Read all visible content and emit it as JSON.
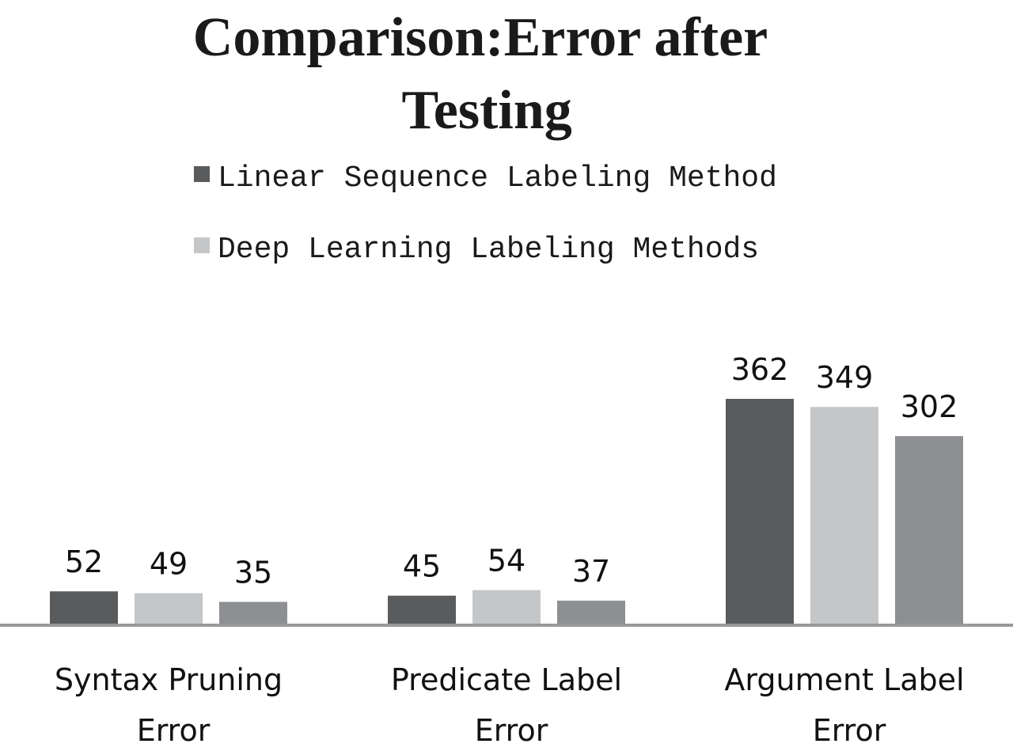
{
  "chart_data": {
    "type": "bar",
    "title": "Comparison:Error after Testing",
    "categories": [
      "Syntax Pruning Error",
      "Predicate Label Error",
      "Argument Label Error"
    ],
    "series": [
      {
        "name": "Linear Sequence Labeling Method",
        "color": "#5a5b5d",
        "values": [
          52,
          45,
          362
        ]
      },
      {
        "name": "Deep Learning Labeling Methods",
        "color": "#c5c6c8",
        "values": [
          49,
          54,
          349
        ]
      },
      {
        "color": "#8e8f92",
        "values": [
          35,
          37,
          302
        ]
      }
    ]
  }
}
